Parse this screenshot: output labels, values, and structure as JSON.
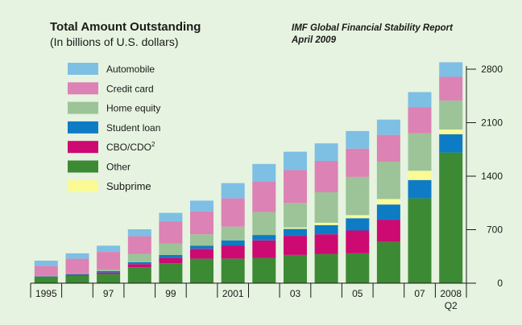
{
  "chart_data": {
    "type": "bar",
    "stacked": true,
    "title": "Total Amount Outstanding",
    "subtitle": "(In billions of U.S. dollars)",
    "source": "IMF Global Financial Stability Report",
    "source_date": "April 2009",
    "categories": [
      "1995",
      "1996",
      "1997",
      "1998",
      "1999",
      "2000",
      "2001",
      "2002",
      "2003",
      "2004",
      "2005",
      "2006",
      "2007",
      "2008 Q2"
    ],
    "x_tick_labels": [
      {
        "index": 0,
        "text": "1995"
      },
      {
        "index": 2,
        "text": "97"
      },
      {
        "index": 4,
        "text": "99"
      },
      {
        "index": 6,
        "text": "2001"
      },
      {
        "index": 8,
        "text": "03"
      },
      {
        "index": 10,
        "text": "05"
      },
      {
        "index": 12,
        "text": "07"
      },
      {
        "index": 13,
        "text": "2008",
        "text2": "Q2"
      }
    ],
    "yticks": [
      0,
      700,
      1400,
      2100,
      2800
    ],
    "ylim": [
      0,
      2800
    ],
    "y_axis_side": "right",
    "legend_placement": "top-left",
    "series": [
      {
        "name": "Other",
        "color": "#3d8a35",
        "values": [
          80,
          100,
          120,
          210,
          260,
          320,
          320,
          330,
          370,
          380,
          390,
          540,
          1110,
          1710
        ]
      },
      {
        "name": "CBO/CDO",
        "superscript": "2",
        "color": "#cc0a72",
        "values": [
          5,
          10,
          20,
          40,
          70,
          130,
          170,
          230,
          250,
          260,
          300,
          290,
          0,
          0
        ]
      },
      {
        "name": "Student loan",
        "color": "#0e7cc4",
        "values": [
          5,
          10,
          20,
          25,
          40,
          40,
          70,
          70,
          90,
          120,
          160,
          200,
          240,
          240
        ]
      },
      {
        "name": "Subprime",
        "color": "#fafa96",
        "values": [
          0,
          0,
          0,
          0,
          0,
          0,
          0,
          0,
          20,
          30,
          40,
          70,
          120,
          60
        ]
      },
      {
        "name": "Home equity",
        "color": "#9cc498",
        "values": [
          5,
          10,
          20,
          110,
          150,
          150,
          180,
          300,
          320,
          400,
          500,
          490,
          490,
          380
        ]
      },
      {
        "name": "Credit card",
        "color": "#dc82b4",
        "values": [
          130,
          190,
          230,
          230,
          290,
          300,
          370,
          400,
          430,
          410,
          370,
          350,
          340,
          310
        ]
      },
      {
        "name": "Automobile",
        "color": "#7ebfe4",
        "values": [
          70,
          70,
          80,
          90,
          110,
          140,
          200,
          230,
          240,
          230,
          230,
          200,
          200,
          190
        ]
      }
    ],
    "legend_order": [
      "Automobile",
      "Credit card",
      "Home equity",
      "Student loan",
      "CBO/CDO",
      "Other",
      "Subprime"
    ],
    "grid": false
  }
}
